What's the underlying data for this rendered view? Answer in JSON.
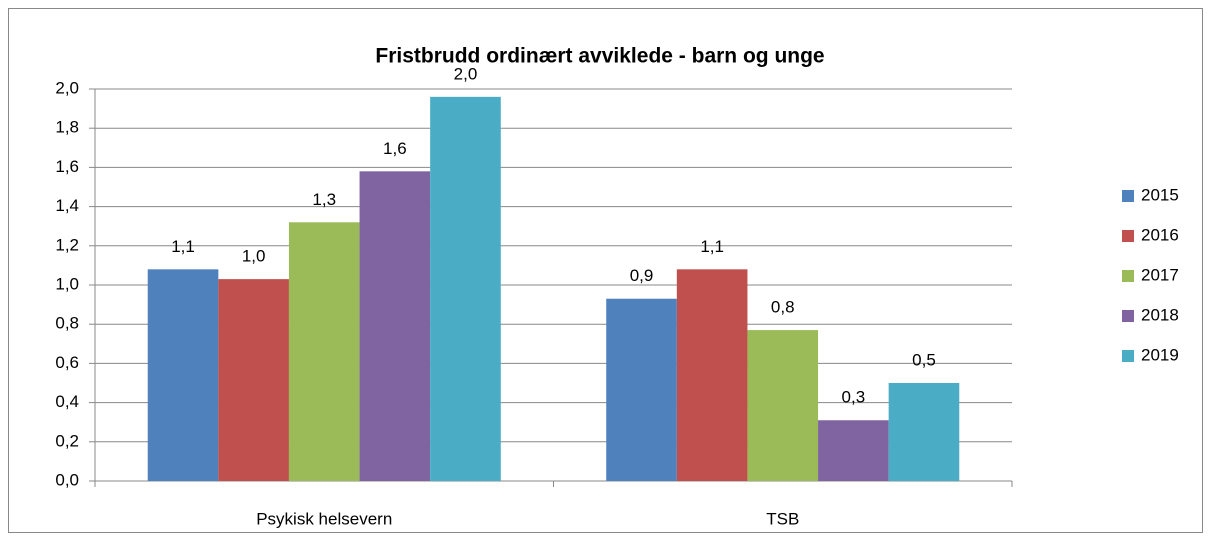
{
  "chart_data": {
    "type": "bar",
    "title": "Fristbrudd ordinært avviklede - barn og unge",
    "categories": [
      "Psykisk helsevern",
      "TSB"
    ],
    "series": [
      {
        "name": "2015",
        "color": "#4f81bd",
        "values": [
          1.08,
          0.93
        ],
        "value_labels": [
          "1,1",
          "0,9"
        ]
      },
      {
        "name": "2016",
        "color": "#c0504d",
        "values": [
          1.03,
          1.08
        ],
        "value_labels": [
          "1,0",
          "1,1"
        ]
      },
      {
        "name": "2017",
        "color": "#9bbb59",
        "values": [
          1.32,
          0.77
        ],
        "value_labels": [
          "1,3",
          "0,8"
        ]
      },
      {
        "name": "2018",
        "color": "#8064a2",
        "values": [
          1.58,
          0.31
        ],
        "value_labels": [
          "1,6",
          "0,3"
        ]
      },
      {
        "name": "2019",
        "color": "#4bacc6",
        "values": [
          1.96,
          0.5
        ],
        "value_labels": [
          "2,0",
          "0,5"
        ]
      }
    ],
    "ylim": [
      0,
      2
    ],
    "yticks": [
      {
        "value": 0,
        "label": "0,0"
      },
      {
        "value": 0.2,
        "label": "0,2"
      },
      {
        "value": 0.4,
        "label": "0,4"
      },
      {
        "value": 0.6,
        "label": "0,6"
      },
      {
        "value": 0.8,
        "label": "0,8"
      },
      {
        "value": 1,
        "label": "1,0"
      },
      {
        "value": 1.2,
        "label": "1,2"
      },
      {
        "value": 1.4,
        "label": "1,4"
      },
      {
        "value": 1.6,
        "label": "1,6"
      },
      {
        "value": 1.8,
        "label": "1,8"
      },
      {
        "value": 2,
        "label": "2,0"
      }
    ],
    "grid": true,
    "legend": "right"
  }
}
